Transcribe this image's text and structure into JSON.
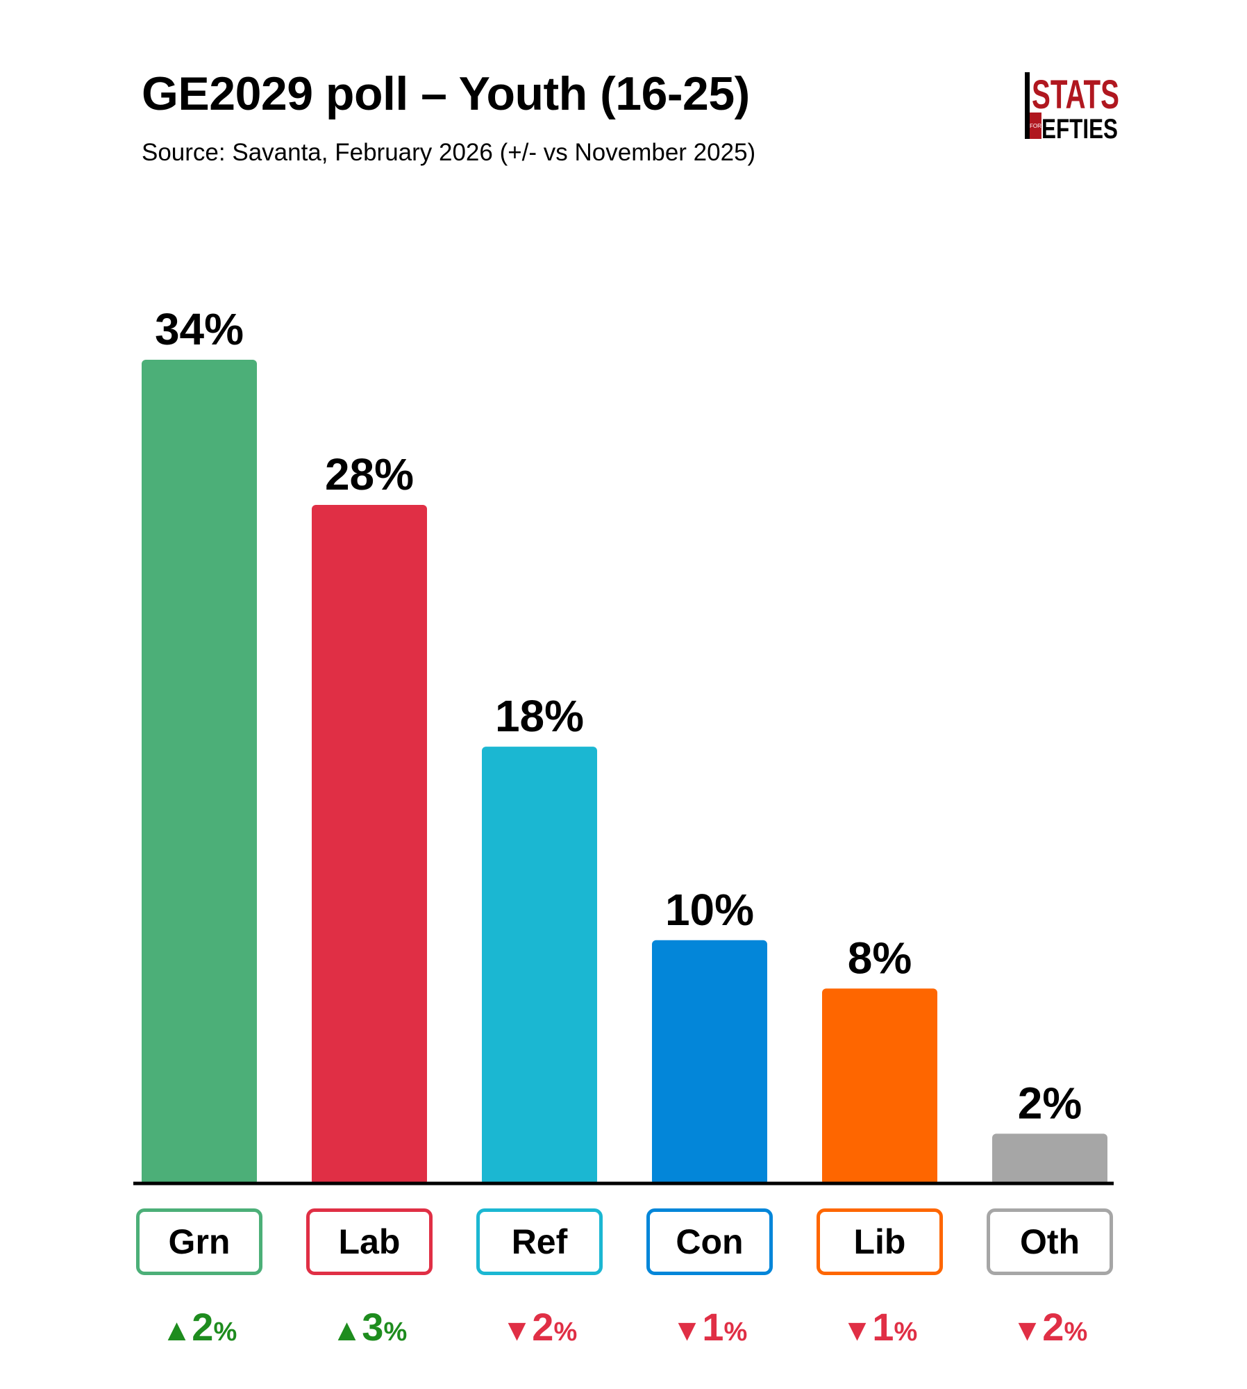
{
  "header": {
    "title": "GE2029 poll – Youth (16-25)",
    "subtitle": "Source: Savanta, February 2026 (+/- vs November 2025)"
  },
  "logo": {
    "top_text": "STATS",
    "small_text": "FOR",
    "bottom_text": "EFTIES",
    "color": "#b0171f"
  },
  "chart_data": {
    "type": "bar",
    "title": "GE2029 poll – Youth (16-25)",
    "subtitle": "Source: Savanta, February 2026 (+/- vs November 2025)",
    "categories": [
      "Grn",
      "Lab",
      "Ref",
      "Con",
      "Lib",
      "Oth"
    ],
    "values": [
      34,
      28,
      18,
      10,
      8,
      2
    ],
    "value_labels": [
      "34%",
      "28%",
      "18%",
      "10%",
      "8%",
      "2%"
    ],
    "colors": [
      "#4caf78",
      "#e02f45",
      "#1bb7d2",
      "#0386d9",
      "#fe6600",
      "#a6a6a6"
    ],
    "changes": [
      {
        "direction": "up",
        "arrow": "▲",
        "value": "2",
        "unit": "%"
      },
      {
        "direction": "up",
        "arrow": "▲",
        "value": "3",
        "unit": "%"
      },
      {
        "direction": "down",
        "arrow": "▼",
        "value": "2",
        "unit": "%"
      },
      {
        "direction": "down",
        "arrow": "▼",
        "value": "1",
        "unit": "%"
      },
      {
        "direction": "down",
        "arrow": "▼",
        "value": "1",
        "unit": "%"
      },
      {
        "direction": "down",
        "arrow": "▼",
        "value": "2",
        "unit": "%"
      }
    ],
    "change_colors": {
      "up": "#1e8c1e",
      "down": "#e02f45"
    },
    "ylim": [
      0,
      34
    ],
    "grid": false,
    "legend": "none"
  }
}
